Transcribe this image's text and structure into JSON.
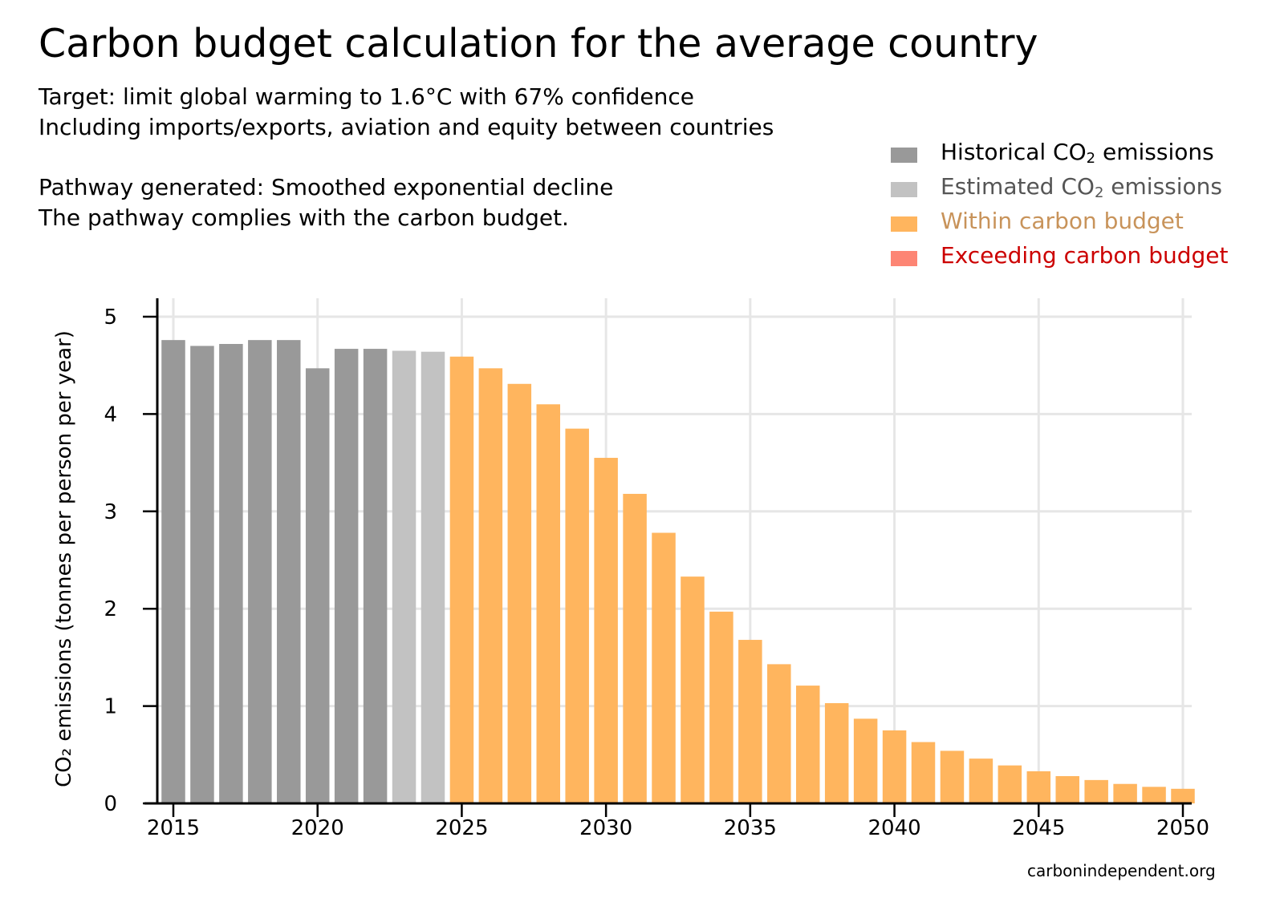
{
  "title": "Carbon budget calculation for the average country",
  "subtitle_lines": [
    "Target: limit global warming to 1.6°C with 67% confidence",
    "Including imports/exports, aviation and equity between countries",
    "Pathway generated: Smoothed exponential decline",
    "The pathway complies with the carbon budget."
  ],
  "legend": [
    {
      "label_pre": "Historical CO",
      "label_sub": "2",
      "label_post": " emissions",
      "color": "#999999",
      "text_color": "#000000"
    },
    {
      "label_pre": "Estimated CO",
      "label_sub": "2",
      "label_post": " emissions",
      "color": "#c2c2c2",
      "text_color": "#555555"
    },
    {
      "label_pre": "Within carbon budget",
      "label_sub": "",
      "label_post": "",
      "color": "#ffb55e",
      "text_color": "#c8935a"
    },
    {
      "label_pre": "Exceeding carbon budget",
      "label_sub": "",
      "label_post": "",
      "color": "#fd8574",
      "text_color": "#cc0000"
    }
  ],
  "source": "carbonindependent.org",
  "chart_data": {
    "type": "bar",
    "ylabel": "CO₂ emissions (tonnes per person per year)",
    "xlabel": "",
    "x_ticks": [
      2015,
      2020,
      2025,
      2030,
      2035,
      2040,
      2045,
      2050
    ],
    "y_ticks": [
      0,
      1,
      2,
      3,
      4,
      5
    ],
    "xlim": [
      2014.5,
      2050.5
    ],
    "ylim": [
      0,
      5.2
    ],
    "grid": true,
    "legend_position": "top-right",
    "colors": {
      "historical": "#999999",
      "estimated": "#c2c2c2",
      "within": "#ffb55e",
      "exceeding": "#fd8574"
    },
    "years": [
      2015,
      2016,
      2017,
      2018,
      2019,
      2020,
      2021,
      2022,
      2023,
      2024,
      2025,
      2026,
      2027,
      2028,
      2029,
      2030,
      2031,
      2032,
      2033,
      2034,
      2035,
      2036,
      2037,
      2038,
      2039,
      2040,
      2041,
      2042,
      2043,
      2044,
      2045,
      2046,
      2047,
      2048,
      2049,
      2050
    ],
    "values": [
      4.76,
      4.7,
      4.72,
      4.76,
      4.76,
      4.47,
      4.67,
      4.67,
      4.65,
      4.64,
      4.59,
      4.47,
      4.31,
      4.1,
      3.85,
      3.55,
      3.18,
      2.78,
      2.33,
      1.97,
      1.68,
      1.43,
      1.21,
      1.03,
      0.87,
      0.75,
      0.63,
      0.54,
      0.46,
      0.39,
      0.33,
      0.28,
      0.24,
      0.2,
      0.17,
      0.15
    ],
    "categories": [
      "historical",
      "historical",
      "historical",
      "historical",
      "historical",
      "historical",
      "historical",
      "historical",
      "estimated",
      "estimated",
      "within",
      "within",
      "within",
      "within",
      "within",
      "within",
      "within",
      "within",
      "within",
      "within",
      "within",
      "within",
      "within",
      "within",
      "within",
      "within",
      "within",
      "within",
      "within",
      "within",
      "within",
      "within",
      "within",
      "within",
      "within",
      "within"
    ]
  }
}
